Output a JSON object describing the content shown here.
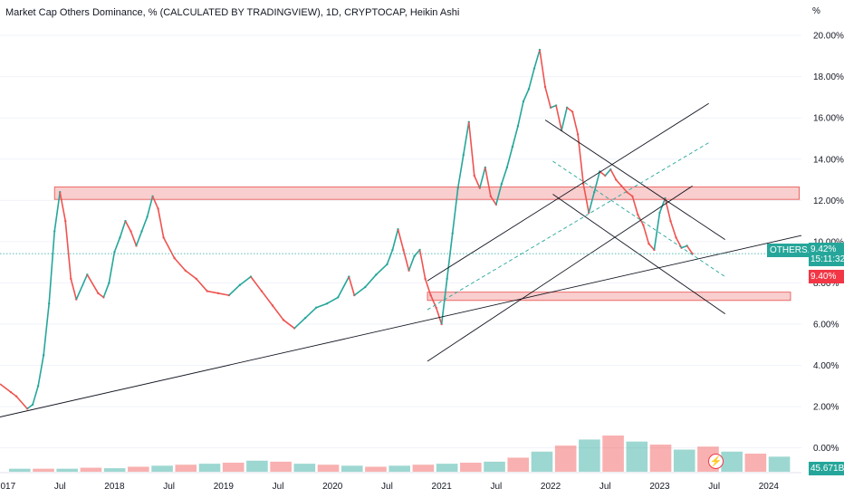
{
  "header": {
    "title": "Market Cap Others Dominance, % (CALCULATED BY TRADINGVIEW), 1D, CRYPTOCAP, Heikin Ashi",
    "unit": "%"
  },
  "badges": {
    "symbol": "OTHERS.D",
    "last_value": "9.42%",
    "countdown": "15:11:32",
    "prev_value": "9.40%",
    "volume": "45.671B"
  },
  "colors": {
    "up": "#26a69a",
    "down": "#ef5350",
    "zone_fill": "#f9c9c9",
    "zone_stroke": "#e53935",
    "dashed": "#26a69a",
    "trend": "#131722",
    "badge_up": "#26a69a",
    "badge_down": "#f23645"
  },
  "icons": {
    "alert": "lightning-icon"
  },
  "chart_data": {
    "type": "line",
    "title": "Market Cap Others Dominance, % (CALCULATED BY TRADINGVIEW), 1D, CRYPTOCAP, Heikin Ashi",
    "xlabel": "",
    "ylabel": "%",
    "x_ticks": [
      "2017",
      "Jul",
      "2018",
      "Jul",
      "2019",
      "Jul",
      "2020",
      "Jul",
      "2021",
      "Jul",
      "2022",
      "Jul",
      "2023",
      "Jul",
      "2024"
    ],
    "y_ticks": [
      "20.00%",
      "18.00%",
      "16.00%",
      "14.00%",
      "12.00%",
      "10.00%",
      "8.00%",
      "6.00%",
      "4.00%",
      "2.00%",
      "0.00%"
    ],
    "ylim": [
      -1.2,
      20.4
    ],
    "xlim": [
      2016.95,
      2024.3
    ],
    "series": [
      {
        "x": [
          2016.95,
          2017.05,
          2017.1,
          2017.2,
          2017.25,
          2017.3,
          2017.35,
          2017.4,
          2017.45,
          2017.5,
          2017.55,
          2017.6,
          2017.65,
          2017.75,
          2017.85,
          2017.9,
          2017.95,
          2018.0,
          2018.05,
          2018.1,
          2018.15,
          2018.2,
          2018.25,
          2018.3,
          2018.35,
          2018.4,
          2018.45,
          2018.55,
          2018.65,
          2018.75,
          2018.85,
          2018.95,
          2019.05,
          2019.15,
          2019.25,
          2019.35,
          2019.45,
          2019.55,
          2019.65,
          2019.75,
          2019.85,
          2019.95,
          2020.05,
          2020.15,
          2020.2,
          2020.3,
          2020.4,
          2020.5,
          2020.55,
          2020.6,
          2020.65,
          2020.7,
          2020.75,
          2020.8,
          2020.85,
          2020.9,
          2020.95,
          2021.0,
          2021.05,
          2021.1,
          2021.15,
          2021.2,
          2021.25,
          2021.3,
          2021.35,
          2021.4,
          2021.45,
          2021.5,
          2021.55,
          2021.6,
          2021.65,
          2021.7,
          2021.75,
          2021.8,
          2021.85,
          2021.9,
          2021.95,
          2022.0,
          2022.05,
          2022.1,
          2022.15,
          2022.2,
          2022.25,
          2022.3,
          2022.35,
          2022.4,
          2022.45,
          2022.5,
          2022.55,
          2022.6,
          2022.65,
          2022.7,
          2022.75,
          2022.8,
          2022.85,
          2022.9,
          2022.95,
          2023.0,
          2023.05,
          2023.1,
          2023.15,
          2023.2,
          2023.25,
          2023.3
        ],
        "values": [
          3.1,
          2.7,
          2.5,
          1.9,
          2.1,
          3.0,
          4.5,
          7.0,
          10.5,
          12.4,
          11.0,
          8.2,
          7.2,
          8.4,
          7.5,
          7.3,
          8.0,
          9.5,
          10.2,
          11.0,
          10.5,
          9.8,
          10.5,
          11.2,
          12.2,
          11.6,
          10.2,
          9.2,
          8.6,
          8.2,
          7.6,
          7.5,
          7.4,
          7.9,
          8.3,
          7.6,
          6.9,
          6.2,
          5.8,
          6.3,
          6.8,
          7.0,
          7.3,
          8.3,
          7.4,
          7.8,
          8.4,
          8.9,
          9.6,
          10.6,
          9.6,
          8.6,
          9.3,
          9.6,
          8.2,
          7.4,
          6.8,
          6.0,
          8.2,
          10.4,
          12.6,
          14.2,
          15.8,
          13.2,
          12.6,
          13.6,
          12.2,
          11.8,
          12.8,
          13.6,
          14.6,
          15.6,
          16.8,
          17.4,
          18.4,
          19.3,
          17.5,
          16.5,
          16.6,
          15.4,
          16.5,
          16.3,
          15.2,
          12.8,
          11.4,
          12.4,
          13.4,
          13.2,
          13.5,
          13.0,
          12.7,
          12.4,
          12.2,
          11.3,
          10.8,
          9.9,
          9.6,
          11.4,
          12.1,
          11.0,
          10.2,
          9.7,
          9.8,
          9.42
        ]
      }
    ],
    "volume_series": [
      0.3,
      0.3,
      0.3,
      0.4,
      0.35,
      0.5,
      0.6,
      0.7,
      0.8,
      0.9,
      1.1,
      1.0,
      0.8,
      0.7,
      0.6,
      0.5,
      0.6,
      0.7,
      0.8,
      0.9,
      1.0,
      1.4,
      2.0,
      2.6,
      3.2,
      3.6,
      3.0,
      2.7,
      2.2,
      2.5,
      2.0,
      1.8,
      1.5
    ],
    "last_value": 9.42,
    "prev_value": 9.4,
    "grid": true,
    "legend": "none"
  }
}
